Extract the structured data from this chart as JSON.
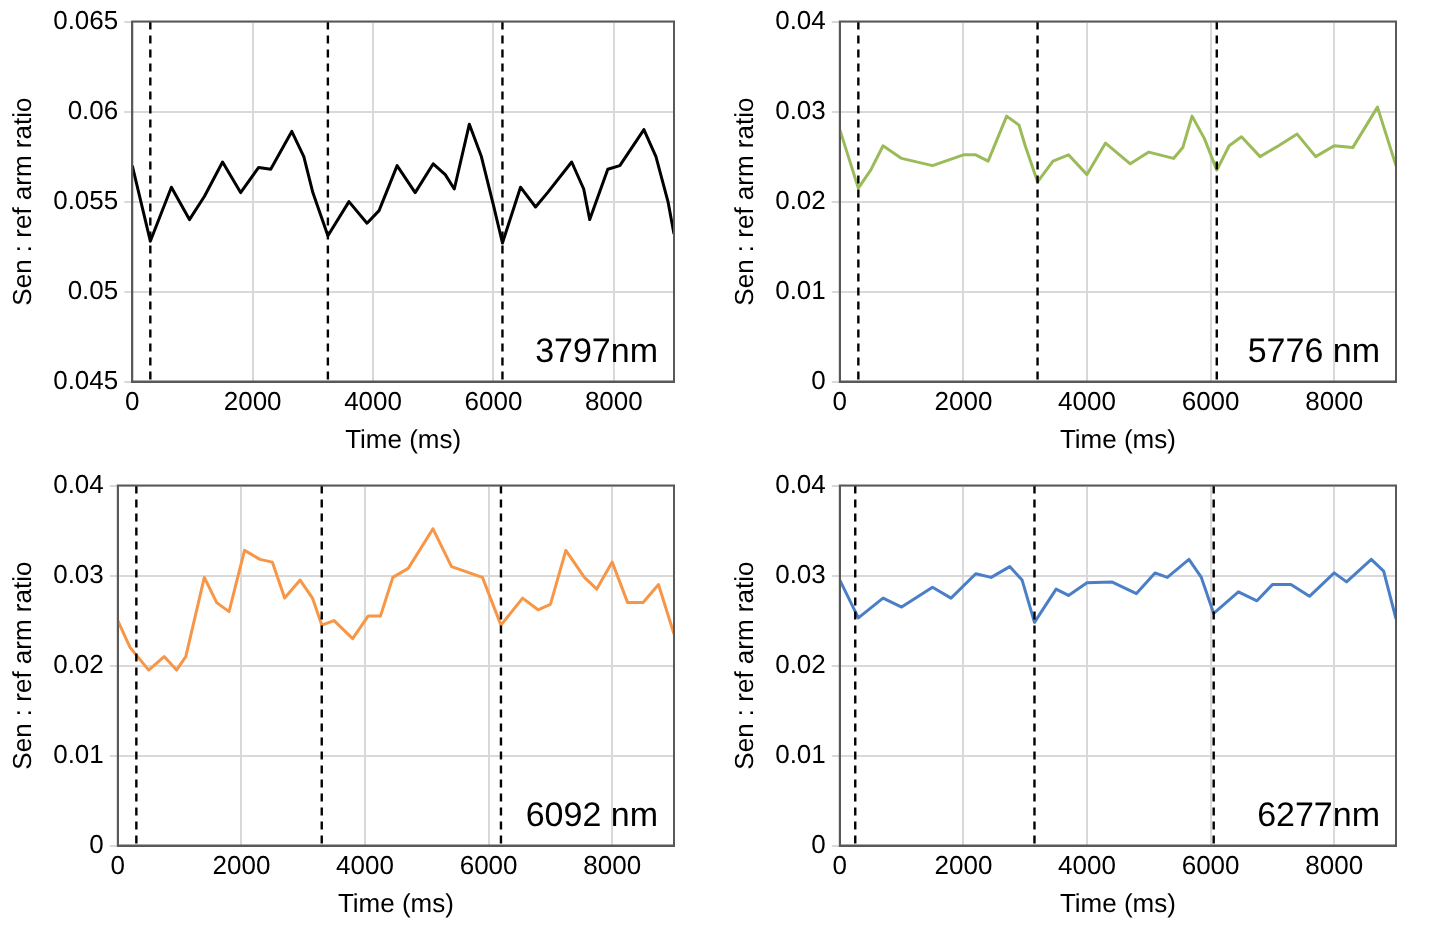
{
  "chart_data": [
    {
      "type": "line",
      "xlabel": "Time (ms)",
      "ylabel": "Sen : ref arm ratio",
      "annotations": [
        "3797nm"
      ],
      "xlim": [
        0,
        9000
      ],
      "xticks": [
        0,
        2000,
        4000,
        6000,
        8000
      ],
      "ylim": [
        0.045,
        0.065
      ],
      "yticks": [
        0.045,
        0.05,
        0.055,
        0.06,
        0.065
      ],
      "grid": true,
      "marker": "none",
      "line_style": "solid",
      "series": [
        {
          "color": "#000000",
          "x": [
            0,
            300,
            650,
            950,
            1200,
            1500,
            1800,
            2100,
            2300,
            2650,
            2850,
            3000,
            3250,
            3600,
            3900,
            4100,
            4400,
            4700,
            5000,
            5200,
            5350,
            5600,
            5800,
            6000,
            6150,
            6450,
            6700,
            6900,
            7300,
            7500,
            7600,
            7900,
            8100,
            8500,
            8700,
            8900,
            9000
          ],
          "values": [
            0.057,
            0.0528,
            0.0558,
            0.054,
            0.0553,
            0.0572,
            0.0555,
            0.0569,
            0.0568,
            0.0589,
            0.0575,
            0.0555,
            0.0531,
            0.055,
            0.0538,
            0.0545,
            0.057,
            0.0555,
            0.0571,
            0.0565,
            0.0557,
            0.0593,
            0.0575,
            0.0548,
            0.0527,
            0.0558,
            0.0547,
            0.0555,
            0.0572,
            0.0557,
            0.054,
            0.0568,
            0.057,
            0.059,
            0.0575,
            0.055,
            0.0532
          ]
        }
      ],
      "ref_lines": [
        {
          "axis": "x",
          "value": 300,
          "color": "#000000",
          "line_style": "dashed"
        },
        {
          "axis": "x",
          "value": 3250,
          "color": "#000000",
          "line_style": "dashed"
        },
        {
          "axis": "x",
          "value": 6150,
          "color": "#000000",
          "line_style": "dashed"
        }
      ]
    },
    {
      "type": "line",
      "xlabel": "Time (ms)",
      "ylabel": "Sen : ref arm ratio",
      "annotations": [
        "5776 nm"
      ],
      "xlim": [
        0,
        9000
      ],
      "xticks": [
        0,
        2000,
        4000,
        6000,
        8000
      ],
      "ylim": [
        0,
        0.04
      ],
      "yticks": [
        0,
        0.01,
        0.02,
        0.03,
        0.04
      ],
      "grid": true,
      "marker": "none",
      "line_style": "solid",
      "series": [
        {
          "color": "#9bbb59",
          "x": [
            0,
            300,
            500,
            700,
            1000,
            1500,
            2000,
            2200,
            2400,
            2700,
            2900,
            3000,
            3200,
            3450,
            3700,
            4000,
            4300,
            4700,
            5000,
            5400,
            5550,
            5700,
            5900,
            6100,
            6300,
            6500,
            6800,
            7100,
            7400,
            7700,
            8000,
            8300,
            8700,
            9000
          ],
          "values": [
            0.028,
            0.0215,
            0.0235,
            0.0262,
            0.0248,
            0.024,
            0.0252,
            0.0252,
            0.0245,
            0.0295,
            0.0285,
            0.0262,
            0.0222,
            0.0245,
            0.0252,
            0.023,
            0.0265,
            0.0242,
            0.0255,
            0.0248,
            0.026,
            0.0295,
            0.027,
            0.0235,
            0.0262,
            0.0272,
            0.025,
            0.0262,
            0.0275,
            0.025,
            0.0262,
            0.026,
            0.0305,
            0.024
          ]
        }
      ],
      "ref_lines": [
        {
          "axis": "x",
          "value": 300,
          "color": "#000000",
          "line_style": "dashed"
        },
        {
          "axis": "x",
          "value": 3200,
          "color": "#000000",
          "line_style": "dashed"
        },
        {
          "axis": "x",
          "value": 6100,
          "color": "#000000",
          "line_style": "dashed"
        }
      ]
    },
    {
      "type": "line",
      "xlabel": "Time (ms)",
      "ylabel": "Sen : ref arm ratio",
      "annotations": [
        "6092 nm"
      ],
      "xlim": [
        0,
        9000
      ],
      "xticks": [
        0,
        2000,
        4000,
        6000,
        8000
      ],
      "ylim": [
        0,
        0.04
      ],
      "yticks": [
        0,
        0.01,
        0.02,
        0.03,
        0.04
      ],
      "grid": true,
      "marker": "none",
      "line_style": "solid",
      "series": [
        {
          "color": "#f79646",
          "x": [
            0,
            200,
            500,
            750,
            950,
            1100,
            1400,
            1600,
            1800,
            2050,
            2300,
            2500,
            2700,
            2950,
            3150,
            3300,
            3500,
            3800,
            4050,
            4250,
            4450,
            4700,
            5100,
            5400,
            5900,
            6200,
            6550,
            6800,
            7000,
            7250,
            7550,
            7750,
            8000,
            8250,
            8500,
            8750,
            9000
          ],
          "values": [
            0.025,
            0.022,
            0.0195,
            0.021,
            0.0195,
            0.021,
            0.0298,
            0.027,
            0.026,
            0.0328,
            0.0318,
            0.0315,
            0.0275,
            0.0295,
            0.0275,
            0.0245,
            0.025,
            0.023,
            0.0255,
            0.0255,
            0.0298,
            0.0308,
            0.0352,
            0.031,
            0.0298,
            0.0245,
            0.0275,
            0.0262,
            0.0268,
            0.0328,
            0.0298,
            0.0285,
            0.0315,
            0.027,
            0.027,
            0.029,
            0.0235
          ]
        }
      ],
      "ref_lines": [
        {
          "axis": "x",
          "value": 300,
          "color": "#000000",
          "line_style": "dashed"
        },
        {
          "axis": "x",
          "value": 3300,
          "color": "#000000",
          "line_style": "dashed"
        },
        {
          "axis": "x",
          "value": 6200,
          "color": "#000000",
          "line_style": "dashed"
        }
      ]
    },
    {
      "type": "line",
      "xlabel": "Time (ms)",
      "ylabel": "Sen : ref arm ratio",
      "annotations": [
        "6277nm"
      ],
      "xlim": [
        0,
        9000
      ],
      "xticks": [
        0,
        2000,
        4000,
        6000,
        8000
      ],
      "ylim": [
        0,
        0.04
      ],
      "yticks": [
        0,
        0.01,
        0.02,
        0.03,
        0.04
      ],
      "grid": true,
      "marker": "none",
      "line_style": "solid",
      "series": [
        {
          "color": "#4a7fc8",
          "x": [
            0,
            300,
            700,
            1000,
            1500,
            1800,
            2200,
            2450,
            2750,
            2950,
            3150,
            3500,
            3700,
            4000,
            4400,
            4800,
            5100,
            5300,
            5650,
            5850,
            6050,
            6450,
            6750,
            7000,
            7300,
            7600,
            8000,
            8200,
            8600,
            8800,
            9000
          ],
          "values": [
            0.0295,
            0.0253,
            0.0275,
            0.0265,
            0.0287,
            0.0275,
            0.0302,
            0.0298,
            0.031,
            0.0295,
            0.0248,
            0.0285,
            0.0278,
            0.0292,
            0.0293,
            0.028,
            0.0303,
            0.0298,
            0.0318,
            0.0298,
            0.0258,
            0.0282,
            0.0272,
            0.029,
            0.029,
            0.0277,
            0.0303,
            0.0293,
            0.0318,
            0.0305,
            0.0252
          ]
        }
      ],
      "ref_lines": [
        {
          "axis": "x",
          "value": 250,
          "color": "#000000",
          "line_style": "dashed"
        },
        {
          "axis": "x",
          "value": 3150,
          "color": "#000000",
          "line_style": "dashed"
        },
        {
          "axis": "x",
          "value": 6050,
          "color": "#000000",
          "line_style": "dashed"
        }
      ]
    }
  ]
}
